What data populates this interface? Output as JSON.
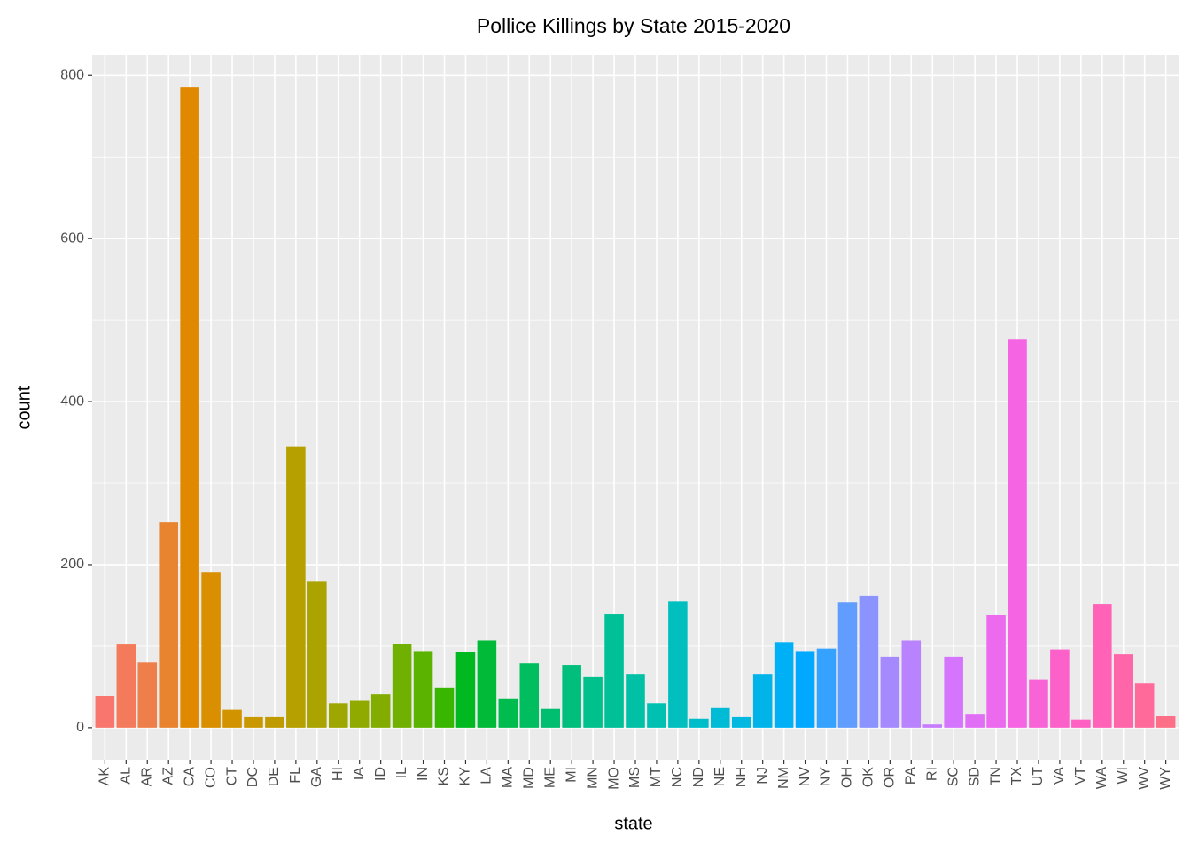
{
  "chart_data": {
    "type": "bar",
    "title": "Pollice Killings by State 2015-2020",
    "x_label": "state",
    "y_label": "count",
    "categories": [
      "AK",
      "AL",
      "AR",
      "AZ",
      "CA",
      "CO",
      "CT",
      "DC",
      "DE",
      "FL",
      "GA",
      "HI",
      "IA",
      "ID",
      "IL",
      "IN",
      "KS",
      "KY",
      "LA",
      "MA",
      "MD",
      "ME",
      "MI",
      "MN",
      "MO",
      "MS",
      "MT",
      "NC",
      "ND",
      "NE",
      "NH",
      "NJ",
      "NM",
      "NV",
      "NY",
      "OH",
      "OK",
      "OR",
      "PA",
      "RI",
      "SC",
      "SD",
      "TN",
      "TX",
      "UT",
      "VA",
      "VT",
      "WA",
      "WI",
      "WV",
      "WY"
    ],
    "values": [
      39,
      102,
      80,
      252,
      786,
      191,
      22,
      13,
      13,
      345,
      180,
      30,
      33,
      41,
      103,
      94,
      49,
      93,
      107,
      36,
      79,
      23,
      77,
      62,
      139,
      66,
      30,
      155,
      11,
      24,
      13,
      66,
      105,
      94,
      97,
      154,
      162,
      87,
      107,
      4,
      87,
      16,
      138,
      477,
      59,
      96,
      10,
      152,
      90,
      54,
      14
    ],
    "colors": [
      "#F8766D",
      "#F47A5C",
      "#EF7F4A",
      "#E8842F",
      "#E08800",
      "#D98F00",
      "#D29300",
      "#C99800",
      "#C09B00",
      "#B5A000",
      "#AAA300",
      "#9EA700",
      "#91AA00",
      "#82AD00",
      "#70B000",
      "#5BB300",
      "#39B600",
      "#00B81F",
      "#00BA38",
      "#00BB4E",
      "#00BD5F",
      "#00BE6F",
      "#00BF7D",
      "#00C08B",
      "#00C098",
      "#00C1A5",
      "#00C0B2",
      "#00BFBE",
      "#00BDCA",
      "#00BBD5",
      "#00B8E0",
      "#00B4EA",
      "#00B0F6",
      "#00A9FF",
      "#35A2FF",
      "#619CFF",
      "#8B93FF",
      "#A58AFF",
      "#B983FF",
      "#C77CFF",
      "#D575FE",
      "#E16FF6",
      "#EB6AEE",
      "#F564E3",
      "#F863D6",
      "#FC61C9",
      "#FF61C3",
      "#FF62B6",
      "#FF65A9",
      "#FF6A9A",
      "#FC6F86"
    ],
    "ylim": [
      -39.3,
      825.3
    ],
    "yticks": [
      0,
      200,
      400,
      600,
      800
    ],
    "minor_yticks": [
      100,
      300,
      500,
      700
    ],
    "grid": true
  }
}
